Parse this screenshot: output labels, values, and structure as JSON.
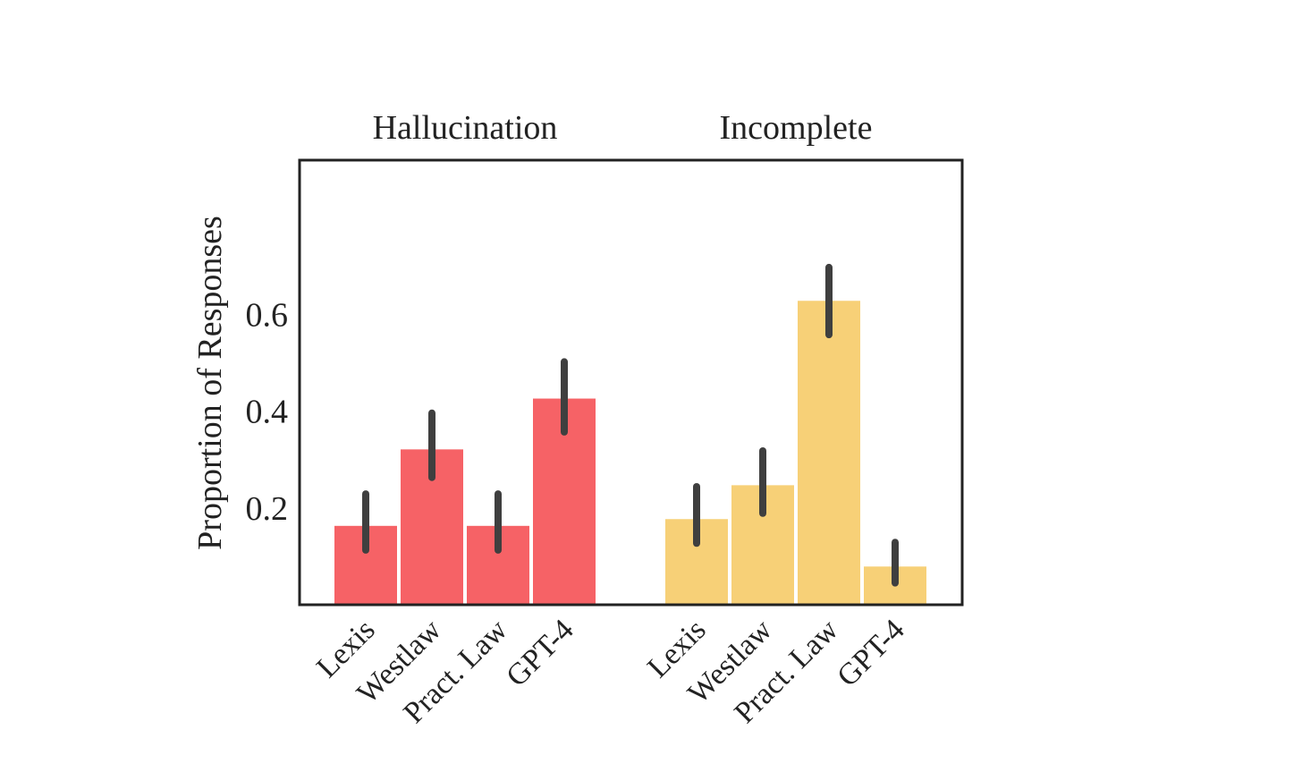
{
  "chart_data": {
    "type": "bar",
    "ylabel": "Proportion of Responses",
    "yticks": [
      "0.2",
      "0.4",
      "0.6"
    ],
    "ytick_values": [
      0.2,
      0.4,
      0.6
    ],
    "ylim": [
      0,
      0.73
    ],
    "grid": false,
    "legend": "none",
    "groups": [
      {
        "title": "Hallucination",
        "color": "#f66266",
        "categories": [
          "Lexis",
          "Westlaw",
          "Pract. Law",
          "GPT-4"
        ],
        "values": [
          0.163,
          0.321,
          0.163,
          0.426
        ],
        "error_low": [
          0.113,
          0.263,
          0.113,
          0.357
        ],
        "error_high": [
          0.229,
          0.396,
          0.229,
          0.502
        ]
      },
      {
        "title": "Incomplete",
        "color": "#f7d077",
        "categories": [
          "Lexis",
          "Westlaw",
          "Pract. Law",
          "GPT-4"
        ],
        "values": [
          0.177,
          0.247,
          0.628,
          0.079
        ],
        "error_low": [
          0.127,
          0.189,
          0.558,
          0.045
        ],
        "error_high": [
          0.244,
          0.318,
          0.697,
          0.129
        ]
      }
    ],
    "error_bar_color": "#3f3f3f"
  }
}
